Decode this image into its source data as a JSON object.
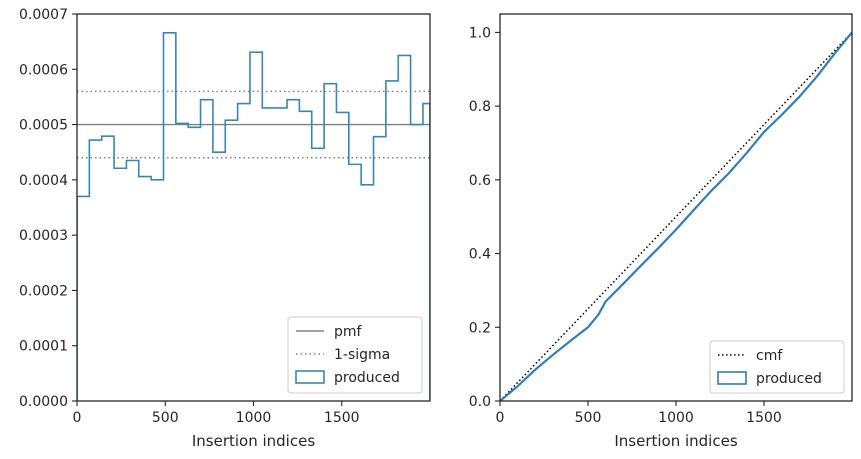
{
  "chart_data": [
    {
      "type": "histogram-step",
      "xlabel": "Insertion indices",
      "ylabel": "",
      "xlim": [
        0,
        2000
      ],
      "ylim": [
        0,
        0.0007
      ],
      "xticks": [
        0,
        500,
        1000,
        1500
      ],
      "yticks": [
        0,
        0.0001,
        0.0002,
        0.0003,
        0.0004,
        0.0005,
        0.0006,
        0.0007
      ],
      "ytick_labels": [
        "0.0000",
        "0.0001",
        "0.0002",
        "0.0003",
        "0.0004",
        "0.0005",
        "0.0006",
        "0.0007"
      ],
      "bin_edges": [
        0,
        70,
        140,
        210,
        280,
        350,
        420,
        490,
        560,
        630,
        700,
        770,
        840,
        910,
        980,
        1050,
        1120,
        1190,
        1260,
        1330,
        1400,
        1470,
        1540,
        1610,
        1680,
        1750,
        1820,
        1890,
        1960,
        2000
      ],
      "values": [
        0.00037,
        0.000472,
        0.000479,
        0.000421,
        0.000435,
        0.000406,
        0.0004,
        0.000666,
        0.000502,
        0.000495,
        0.000545,
        0.00045,
        0.000508,
        0.000538,
        0.000631,
        0.00053,
        0.00053,
        0.000545,
        0.000524,
        0.000457,
        0.000574,
        0.000522,
        0.000428,
        0.000391,
        0.000478,
        0.000579,
        0.000625,
        0.0005,
        0.000538
      ],
      "pmf": 0.0005,
      "sigma_band": [
        0.00044,
        0.00056
      ],
      "legend": [
        "pmf",
        "1-sigma",
        "produced"
      ],
      "legend_position": "lower-right",
      "colors": {
        "hist": "#3a86b4",
        "pmf": "#808080",
        "sigma": "#808080",
        "axis": "#262626"
      }
    },
    {
      "type": "line",
      "xlabel": "Insertion indices",
      "ylabel": "",
      "xlim": [
        0,
        2000
      ],
      "ylim": [
        0,
        1.05
      ],
      "xticks": [
        0,
        500,
        1000,
        1500
      ],
      "yticks": [
        0,
        0.2,
        0.4,
        0.6,
        0.8,
        1.0
      ],
      "ytick_labels": [
        "0.0",
        "0.2",
        "0.4",
        "0.6",
        "0.8",
        "1.0"
      ],
      "series": [
        {
          "name": "cmf",
          "style": "dotted",
          "x": [
            0,
            2000
          ],
          "y": [
            0,
            1
          ]
        },
        {
          "name": "produced",
          "style": "solid",
          "x": [
            0,
            100,
            200,
            300,
            400,
            500,
            560,
            600,
            700,
            800,
            900,
            1000,
            1100,
            1200,
            1300,
            1400,
            1500,
            1600,
            1700,
            1800,
            1900,
            2000
          ],
          "y": [
            0,
            0.04,
            0.085,
            0.125,
            0.163,
            0.2,
            0.235,
            0.27,
            0.318,
            0.367,
            0.415,
            0.465,
            0.518,
            0.57,
            0.618,
            0.672,
            0.73,
            0.776,
            0.825,
            0.88,
            0.942,
            1.0
          ]
        }
      ],
      "legend": [
        "cmf",
        "produced"
      ],
      "legend_position": "lower-right",
      "colors": {
        "produced": "#2f7fb8",
        "cmf": "#000000",
        "axis": "#262626"
      }
    }
  ]
}
